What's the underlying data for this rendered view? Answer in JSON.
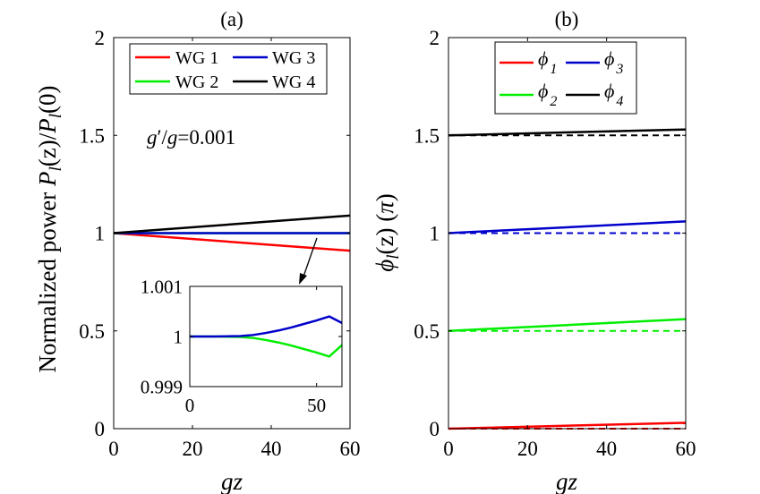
{
  "colors": {
    "wg1": "#ff0000",
    "wg2": "#00ee00",
    "wg3": "#0000cc",
    "wg4": "#000000",
    "axis": "#000000"
  },
  "chart_data": [
    {
      "type": "line",
      "panel_label": "(a)",
      "title": "(a)",
      "xlabel": "gz",
      "ylabel": {
        "prefix": "Normalized power ",
        "P1": "P",
        "sub1": "l",
        "mid": "(z)/",
        "P2": "P",
        "sub2": "l",
        "end": "(0)"
      },
      "xlim": [
        0,
        60
      ],
      "ylim": [
        0,
        2
      ],
      "xticks": [
        0,
        20,
        40,
        60
      ],
      "yticks": [
        0,
        0.5,
        1,
        1.5,
        2
      ],
      "xtick_labels": [
        "0",
        "20",
        "40",
        "60"
      ],
      "ytick_labels": [
        "0",
        "0.5",
        "1",
        "1.5",
        "2"
      ],
      "annotation": {
        "g": "g",
        "prime": "′",
        "slash": "/",
        "g2": "g",
        "eq": "=0.001"
      },
      "legend": {
        "location": "top",
        "entries": [
          "WG 1",
          "WG 3",
          "WG 2",
          "WG 4"
        ]
      },
      "series": [
        {
          "name": "WG 1",
          "color_key": "wg1",
          "x": [
            0,
            60
          ],
          "y": [
            1.0,
            0.91
          ]
        },
        {
          "name": "WG 2",
          "color_key": "wg2",
          "x": [
            0,
            60
          ],
          "y": [
            1.0,
            1.0
          ]
        },
        {
          "name": "WG 3",
          "color_key": "wg3",
          "x": [
            0,
            60
          ],
          "y": [
            1.0,
            1.0
          ]
        },
        {
          "name": "WG 4",
          "color_key": "wg4",
          "x": [
            0,
            60
          ],
          "y": [
            1.0,
            1.09
          ]
        }
      ],
      "inset": {
        "xlim": [
          0,
          60
        ],
        "ylim": [
          0.999,
          1.001
        ],
        "xticks": [
          0,
          50
        ],
        "yticks": [
          0.999,
          1,
          1.001
        ],
        "xtick_labels": [
          "0",
          "50"
        ],
        "ytick_labels": [
          "0.999",
          "1",
          "1.001"
        ],
        "arrow_from": [
          47,
          1.0
        ],
        "series": [
          {
            "name": "WG 2",
            "color_key": "wg2",
            "x": [
              0,
              10,
              20,
              25,
              30,
              35,
              40,
              45,
              50,
              55,
              60
            ],
            "y": [
              1.0,
              1.0,
              0.99999,
              0.99997,
              0.99993,
              0.99988,
              0.99982,
              0.99975,
              0.99968,
              0.9996,
              0.99983
            ]
          },
          {
            "name": "WG 3",
            "color_key": "wg3",
            "x": [
              0,
              10,
              20,
              25,
              30,
              35,
              40,
              45,
              50,
              55,
              60
            ],
            "y": [
              1.0,
              1.0,
              1.00001,
              1.00003,
              1.00007,
              1.00012,
              1.00018,
              1.00025,
              1.00032,
              1.0004,
              1.00027
            ]
          }
        ]
      }
    },
    {
      "type": "line",
      "panel_label": "(b)",
      "title": "(b)",
      "xlabel": "gz",
      "ylabel": {
        "phi": "ϕ",
        "sub": "l",
        "mid": "(z) (",
        "pi": "π",
        "end": ")"
      },
      "xlim": [
        0,
        60
      ],
      "ylim": [
        0,
        2
      ],
      "xticks": [
        0,
        20,
        40,
        60
      ],
      "yticks": [
        0,
        0.5,
        1,
        1.5,
        2
      ],
      "xtick_labels": [
        "0",
        "20",
        "40",
        "60"
      ],
      "ytick_labels": [
        "0",
        "0.5",
        "1",
        "1.5",
        "2"
      ],
      "legend": {
        "location": "top",
        "entries": [
          {
            "sym": "ϕ",
            "sub": "1"
          },
          {
            "sym": "ϕ",
            "sub": "3"
          },
          {
            "sym": "ϕ",
            "sub": "2"
          },
          {
            "sym": "ϕ",
            "sub": "4"
          }
        ]
      },
      "series": [
        {
          "name": "ϕ1",
          "color_key": "wg1",
          "x": [
            0,
            60
          ],
          "y": [
            0.0,
            0.03
          ],
          "dashed_y": [
            0.0,
            0.0
          ]
        },
        {
          "name": "ϕ2",
          "color_key": "wg2",
          "x": [
            0,
            60
          ],
          "y": [
            0.5,
            0.56
          ],
          "dashed_y": [
            0.5,
            0.5
          ]
        },
        {
          "name": "ϕ3",
          "color_key": "wg3",
          "x": [
            0,
            60
          ],
          "y": [
            1.0,
            1.06
          ],
          "dashed_y": [
            1.0,
            1.0
          ]
        },
        {
          "name": "ϕ4",
          "color_key": "wg4",
          "x": [
            0,
            60
          ],
          "y": [
            1.5,
            1.53
          ],
          "dashed_y": [
            1.5,
            1.5
          ]
        }
      ]
    }
  ]
}
